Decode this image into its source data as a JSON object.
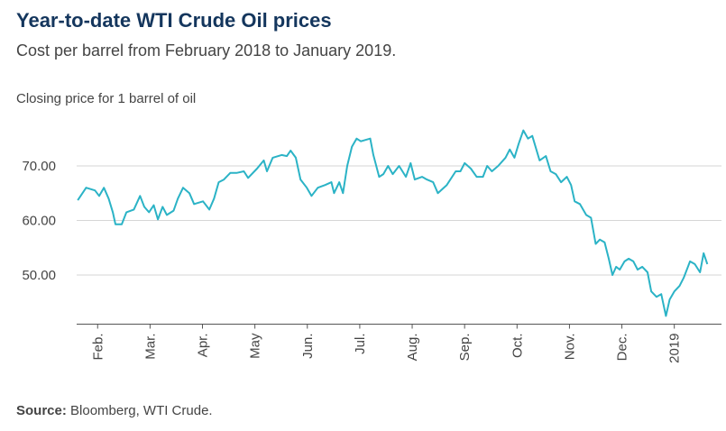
{
  "chart_data": {
    "type": "line",
    "title": "Year-to-date WTI Crude Oil prices",
    "subtitle": "Cost per barrel from February 2018 to January 2019.",
    "y_label": "Closing price for 1 barrel of oil",
    "source_label": "Source:",
    "source": "Bloomberg, WTI Crude.",
    "ylim": [
      41,
      79
    ],
    "yticks": [
      {
        "value": 50,
        "label": "50.00"
      },
      {
        "value": 60,
        "label": "60.00"
      },
      {
        "value": 70,
        "label": "70.00"
      }
    ],
    "xlim": [
      -0.4,
      11.9
    ],
    "xticks": [
      {
        "value": 0,
        "label": "Feb."
      },
      {
        "value": 1,
        "label": "Mar."
      },
      {
        "value": 2,
        "label": "Apr."
      },
      {
        "value": 3,
        "label": "May"
      },
      {
        "value": 4,
        "label": "Jun."
      },
      {
        "value": 5,
        "label": "Jul."
      },
      {
        "value": 6,
        "label": "Aug."
      },
      {
        "value": 7,
        "label": "Sep."
      },
      {
        "value": 8,
        "label": "Oct."
      },
      {
        "value": 9,
        "label": "Nov."
      },
      {
        "value": 10,
        "label": "Dec."
      },
      {
        "value": 11,
        "label": "2019"
      }
    ],
    "grid": true,
    "x": [
      -0.38,
      -0.22,
      -0.05,
      0.03,
      0.12,
      0.21,
      0.29,
      0.34,
      0.46,
      0.55,
      0.69,
      0.81,
      0.89,
      0.98,
      1.07,
      1.15,
      1.24,
      1.32,
      1.45,
      1.53,
      1.63,
      1.75,
      1.84,
      2.01,
      2.13,
      2.22,
      2.31,
      2.41,
      2.53,
      2.65,
      2.79,
      2.87,
      3.04,
      3.17,
      3.23,
      3.34,
      3.51,
      3.61,
      3.68,
      3.78,
      3.87,
      3.99,
      4.08,
      4.2,
      4.34,
      4.46,
      4.51,
      4.61,
      4.68,
      4.76,
      4.85,
      4.94,
      5.02,
      5.2,
      5.26,
      5.37,
      5.45,
      5.54,
      5.63,
      5.75,
      5.88,
      5.97,
      6.05,
      6.19,
      6.28,
      6.4,
      6.49,
      6.66,
      6.83,
      6.92,
      7.0,
      7.12,
      7.23,
      7.35,
      7.43,
      7.52,
      7.64,
      7.78,
      7.86,
      7.95,
      8.03,
      8.12,
      8.21,
      8.29,
      8.43,
      8.55,
      8.64,
      8.74,
      8.84,
      8.95,
      9.03,
      9.1,
      9.2,
      9.32,
      9.41,
      9.5,
      9.58,
      9.67,
      9.75,
      9.82,
      9.89,
      9.96,
      10.05,
      10.13,
      10.22,
      10.3,
      10.39,
      10.49,
      10.56,
      10.66,
      10.75,
      10.84,
      10.91,
      11.0,
      11.1,
      11.18,
      11.3,
      11.39,
      11.49,
      11.56,
      11.63
    ],
    "series": [
      {
        "name": "WTI Crude",
        "color": "#2bb3c6",
        "values": [
          63.7,
          66,
          65.5,
          64.5,
          66,
          64,
          61.5,
          59.3,
          59.3,
          61.5,
          62,
          64.5,
          62.5,
          61.5,
          62.8,
          60.2,
          62.5,
          61,
          61.8,
          64,
          66,
          65,
          63,
          63.5,
          62,
          64,
          67,
          67.5,
          68.7,
          68.7,
          69,
          67.8,
          69.5,
          71,
          69,
          71.5,
          72,
          71.8,
          72.8,
          71.5,
          67.5,
          66,
          64.5,
          66,
          66.5,
          67,
          65,
          67,
          65,
          70,
          73.5,
          75,
          74.5,
          75,
          72,
          68,
          68.5,
          70,
          68.5,
          70,
          68,
          70.5,
          67.5,
          68,
          67.5,
          67,
          65,
          66.5,
          69,
          69,
          70.5,
          69.5,
          68,
          68,
          70,
          69,
          70,
          71.5,
          73,
          71.5,
          74,
          76.5,
          75,
          75.5,
          71,
          71.8,
          69,
          68.5,
          67,
          68,
          66.5,
          63.5,
          63,
          61,
          60.5,
          55.7,
          56.5,
          56,
          53,
          50,
          51.5,
          51,
          52.5,
          53,
          52.5,
          51,
          51.5,
          50.5,
          47,
          46,
          46.5,
          42.5,
          45.5,
          47,
          48,
          49.5,
          52.5,
          52,
          50.5,
          54,
          52
        ]
      }
    ]
  }
}
